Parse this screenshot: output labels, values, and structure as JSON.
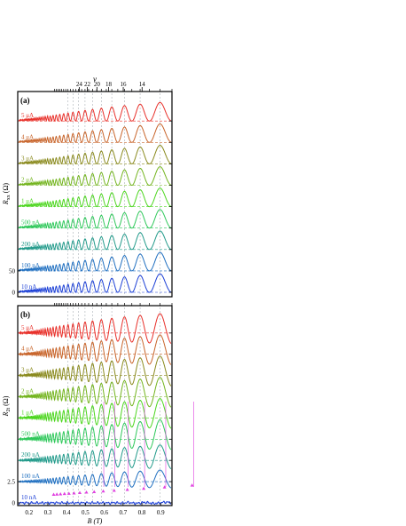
{
  "chart_data": [
    {
      "type": "line",
      "panel_label": "(a)",
      "ylabel_main": "R",
      "ylabel_sub": "xx",
      "ylabel_unit": "(Ω)",
      "xlim": [
        0.14,
        0.96
      ],
      "yticks": [
        "0",
        "50"
      ],
      "top_axis_label": "ν",
      "top_ticks": [
        {
          "label": "24",
          "B": 0.467
        },
        {
          "label": "22",
          "B": 0.51
        },
        {
          "label": "20",
          "B": 0.561
        },
        {
          "label": "18",
          "B": 0.623
        },
        {
          "label": "16",
          "B": 0.701
        },
        {
          "label": "14",
          "B": 0.801
        }
      ],
      "series": [
        {
          "name": "5 μA",
          "color": "#e8302a",
          "amp": 1.0,
          "onset": 0.28,
          "flat": 0.0
        },
        {
          "name": "4 μA",
          "color": "#c8642a",
          "amp": 1.0,
          "onset": 0.26,
          "flat": 0.0
        },
        {
          "name": "3 μA",
          "color": "#8a8a1e",
          "amp": 1.0,
          "onset": 0.24,
          "flat": 0.0
        },
        {
          "name": "2 μA",
          "color": "#73b41e",
          "amp": 1.0,
          "onset": 0.22,
          "flat": 0.0
        },
        {
          "name": "1 μA",
          "color": "#4cd61e",
          "amp": 1.0,
          "onset": 0.2,
          "flat": 0.0
        },
        {
          "name": "500 nA",
          "color": "#2ec85a",
          "amp": 1.0,
          "onset": 0.2,
          "flat": 0.0
        },
        {
          "name": "200 nA",
          "color": "#219a8a",
          "amp": 1.0,
          "onset": 0.2,
          "flat": 0.0
        },
        {
          "name": "100 nA",
          "color": "#1f6fc0",
          "amp": 1.0,
          "onset": 0.2,
          "flat": 0.0
        },
        {
          "name": "10 nA",
          "color": "#1b3fd6",
          "amp": 1.0,
          "onset": 0.2,
          "flat": 0.0
        }
      ]
    },
    {
      "type": "line",
      "panel_label": "(b)",
      "ylabel_main": "R",
      "ylabel_sub": "2t",
      "ylabel_unit": "(Ω)",
      "xlabel": "B (T)",
      "xlim": [
        0.14,
        0.96
      ],
      "xticks": [
        "0.2",
        "0.3",
        "0.4",
        "0.5",
        "0.6",
        "0.7",
        "0.8",
        "0.9"
      ],
      "yticks": [
        "0",
        "2.5"
      ],
      "series": [
        {
          "name": "5 μA",
          "color": "#e8302a",
          "amp": 1.0,
          "onset": 0.2,
          "flat": 0.0
        },
        {
          "name": "4 μA",
          "color": "#c8642a",
          "amp": 1.0,
          "onset": 0.2,
          "flat": 0.0
        },
        {
          "name": "3 μA",
          "color": "#8a8a1e",
          "amp": 1.0,
          "onset": 0.2,
          "flat": 0.0
        },
        {
          "name": "2 μA",
          "color": "#73b41e",
          "amp": 1.0,
          "onset": 0.2,
          "flat": 0.0
        },
        {
          "name": "1 μA",
          "color": "#4cd61e",
          "amp": 1.0,
          "onset": 0.2,
          "flat": 0.0
        },
        {
          "name": "500 nA",
          "color": "#2ec85a",
          "amp": 1.0,
          "onset": 0.2,
          "flat": 0.0
        },
        {
          "name": "200 nA",
          "color": "#219a8a",
          "amp": 0.8,
          "onset": 0.3,
          "flat": 0.0
        },
        {
          "name": "100 nA",
          "color": "#1f6fc0",
          "amp": 0.6,
          "onset": 0.35,
          "flat": 0.0
        },
        {
          "name": "10 nA",
          "color": "#1b3fd6",
          "amp": 0.15,
          "onset": 0.6,
          "flat": 1.0
        }
      ]
    }
  ]
}
